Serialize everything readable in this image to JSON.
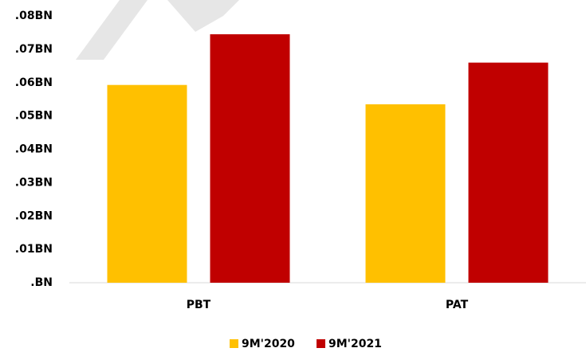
{
  "chart_data": {
    "type": "bar",
    "categories": [
      "PBT",
      "PAT"
    ],
    "series": [
      {
        "name": "9M'2020",
        "color": "#ffc000",
        "values": [
          0.0593,
          0.0535
        ]
      },
      {
        "name": "9M'2021",
        "color": "#c00000",
        "values": [
          0.0745,
          0.066
        ]
      }
    ],
    "ylim": [
      0,
      0.08
    ],
    "yticks": [
      {
        "value": 0,
        "label": ".BN"
      },
      {
        "value": 0.01,
        "label": ".01BN"
      },
      {
        "value": 0.02,
        "label": ".02BN"
      },
      {
        "value": 0.03,
        "label": ".03BN"
      },
      {
        "value": 0.04,
        "label": ".04BN"
      },
      {
        "value": 0.05,
        "label": ".05BN"
      },
      {
        "value": 0.06,
        "label": ".06BN"
      },
      {
        "value": 0.07,
        "label": ".07BN"
      },
      {
        "value": 0.08,
        "label": ".08BN"
      }
    ],
    "grid": false,
    "legend": "bottom"
  }
}
